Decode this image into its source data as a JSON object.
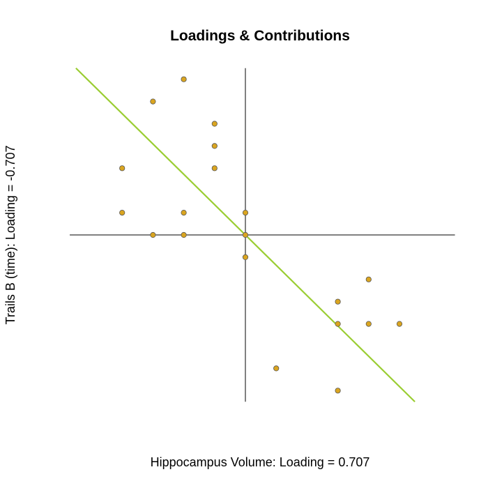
{
  "chart_data": {
    "type": "scatter",
    "title": "Loadings & Contributions",
    "xlabel": "Hippocampus Volume: Loading = 0.707",
    "ylabel": "Trails B (time): Loading = -0.707",
    "xlim": [
      -5.7,
      6.8
    ],
    "ylim": [
      -8.0,
      7.7
    ],
    "grid": false,
    "reference_lines": {
      "x": 0,
      "y": 0,
      "x_extent": [
        -5.7,
        6.8
      ],
      "y_extent": [
        -7.5,
        7.5
      ]
    },
    "fit_line": {
      "x": [
        -5.5,
        5.5
      ],
      "y": [
        7.5,
        -7.5
      ],
      "color": "#9ACD32"
    },
    "points": {
      "color": "#DAA520",
      "stroke": "#555555",
      "x": [
        -2,
        -3,
        -1,
        -1,
        -4,
        -1,
        -4,
        -2,
        0,
        -3,
        -2,
        0,
        0,
        4,
        3,
        3,
        4,
        5,
        1,
        3
      ],
      "y": [
        7,
        6,
        5,
        4,
        3,
        3,
        1,
        1,
        1,
        0,
        0,
        0,
        -1,
        -2,
        -3,
        -4,
        -4,
        -4,
        -6,
        -7
      ]
    }
  }
}
